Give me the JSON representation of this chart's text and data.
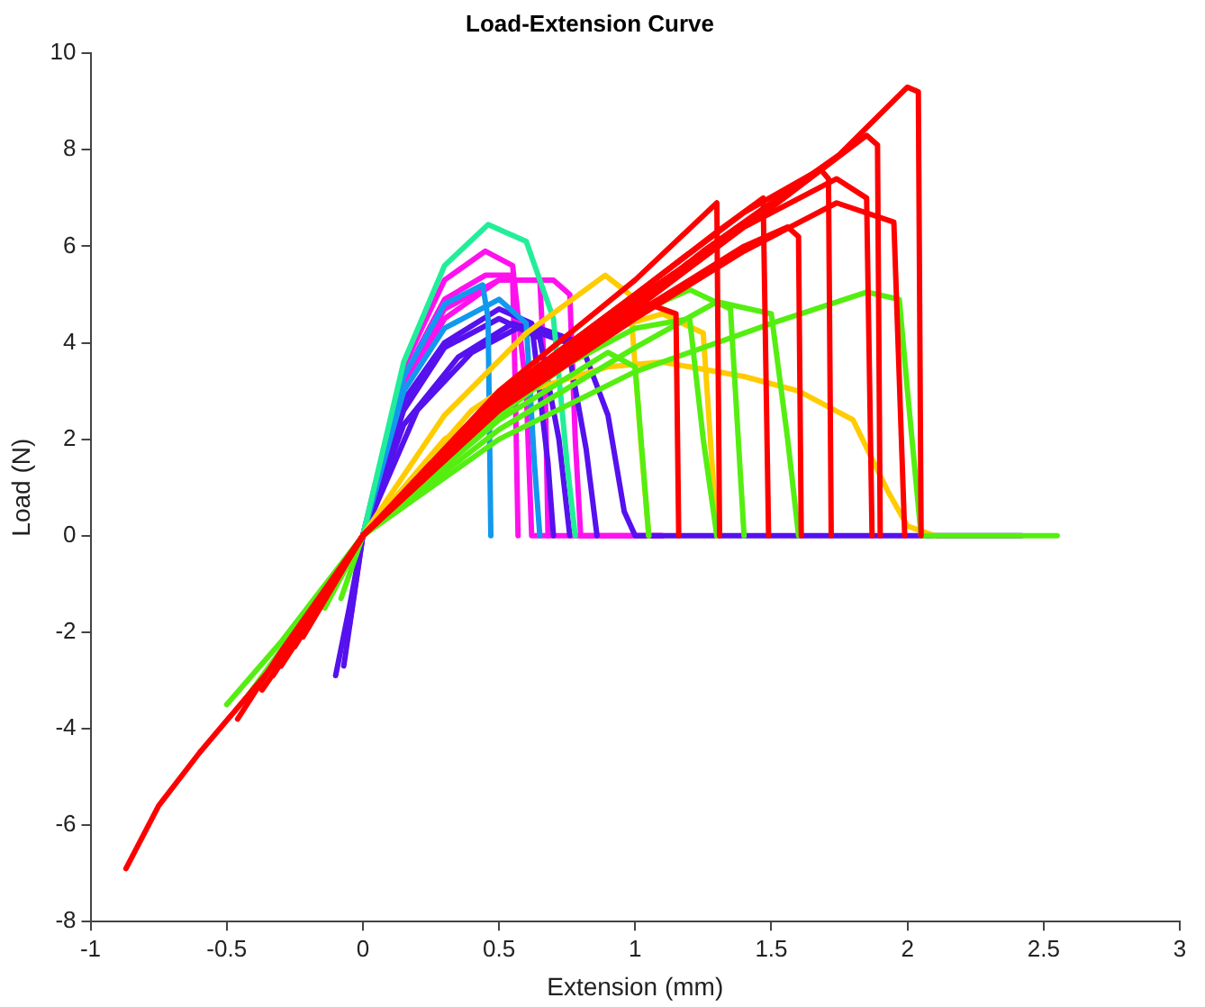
{
  "chart_data": {
    "type": "line",
    "title": "Load-Extension Curve",
    "xlabel": "Extension (mm)",
    "ylabel": "Load (N)",
    "xlim": [
      -1,
      3
    ],
    "xticks": [
      -1,
      -0.5,
      0,
      0.5,
      1,
      1.5,
      2,
      2.5,
      3
    ],
    "ylim": [
      -8,
      10
    ],
    "yticks": [
      -8,
      -6,
      -4,
      -2,
      0,
      2,
      4,
      6,
      8,
      10
    ],
    "grid": false,
    "legend": false,
    "series": [
      {
        "color": "#ff0000",
        "x": [
          -0.87,
          -0.75,
          -0.6,
          -0.45,
          -0.3,
          -0.15,
          0,
          0.25,
          0.5,
          0.75,
          1,
          1.25,
          1.5,
          1.75,
          2.0,
          2.04,
          2.05
        ],
        "values": [
          -6.9,
          -5.6,
          -4.5,
          -3.5,
          -2.5,
          -1.3,
          0,
          1.5,
          2.7,
          3.8,
          4.8,
          5.9,
          6.9,
          7.9,
          9.3,
          9.2,
          0
        ]
      },
      {
        "color": "#ff0000",
        "x": [
          -0.46,
          -0.3,
          -0.15,
          0,
          0.5,
          1,
          1.5,
          1.85,
          1.89,
          1.9
        ],
        "values": [
          -3.8,
          -2.4,
          -1.2,
          0,
          2.8,
          4.9,
          6.8,
          8.3,
          8.1,
          0
        ]
      },
      {
        "color": "#ff0000",
        "x": [
          -0.37,
          -0.2,
          0,
          0.5,
          1,
          1.4,
          1.68,
          1.71,
          1.72
        ],
        "values": [
          -3.2,
          -1.8,
          0,
          2.9,
          5.0,
          6.7,
          7.6,
          7.4,
          0
        ]
      },
      {
        "color": "#ff0000",
        "x": [
          -0.3,
          -0.15,
          0,
          0.5,
          1,
          1.4,
          1.74,
          1.85,
          1.87
        ],
        "values": [
          -2.7,
          -1.4,
          0,
          2.7,
          4.7,
          6.4,
          7.4,
          7.0,
          0
        ]
      },
      {
        "color": "#ff0000",
        "x": [
          -0.25,
          0,
          0.5,
          1,
          1.4,
          1.74,
          1.95,
          1.99
        ],
        "values": [
          -2.3,
          0,
          2.6,
          4.5,
          5.9,
          6.9,
          6.5,
          0
        ]
      },
      {
        "color": "#ff0000",
        "x": [
          -0.2,
          0,
          0.5,
          1,
          1.3,
          1.47,
          1.49
        ],
        "values": [
          -1.9,
          0,
          2.9,
          5.0,
          6.3,
          7.0,
          0
        ]
      },
      {
        "color": "#ff0000",
        "x": [
          -0.22,
          0,
          0.5,
          1,
          1.3,
          1.31
        ],
        "values": [
          -2.1,
          0,
          3.0,
          5.3,
          6.9,
          0
        ]
      },
      {
        "color": "#ff0000",
        "x": [
          -0.33,
          0,
          0.5,
          1,
          1.4,
          1.56,
          1.6,
          1.61
        ],
        "values": [
          -2.9,
          0,
          2.7,
          4.6,
          6.0,
          6.4,
          6.2,
          0
        ]
      },
      {
        "color": "#ff0000",
        "x": [
          -0.15,
          0,
          0.5,
          0.9,
          1.05,
          1.15,
          1.16
        ],
        "values": [
          -1.3,
          0,
          2.6,
          4.3,
          4.8,
          4.6,
          0
        ]
      },
      {
        "color": "#55ee11",
        "x": [
          -0.5,
          -0.3,
          -0.15,
          0,
          0.5,
          1,
          1.5,
          1.85,
          1.97,
          2.0,
          2.05,
          2.55
        ],
        "values": [
          -3.5,
          -2.2,
          -1.1,
          0,
          2.0,
          3.4,
          4.4,
          5.05,
          4.9,
          3,
          0,
          0
        ]
      },
      {
        "color": "#55ee11",
        "x": [
          -0.42,
          -0.2,
          0,
          0.5,
          1,
          1.3,
          1.5,
          1.56,
          1.6
        ],
        "values": [
          -3.3,
          -1.6,
          0,
          2.2,
          3.9,
          4.85,
          4.6,
          2,
          0
        ]
      },
      {
        "color": "#55ee11",
        "x": [
          -0.14,
          0,
          0.5,
          1,
          1.2,
          1.35,
          1.4
        ],
        "values": [
          -1.5,
          0,
          2.5,
          4.6,
          5.1,
          4.7,
          0
        ]
      },
      {
        "color": "#55ee11",
        "x": [
          -0.08,
          0,
          0.5,
          1,
          1.2,
          1.25,
          1.3
        ],
        "values": [
          -1.3,
          0,
          2.8,
          4.3,
          4.5,
          2,
          0
        ]
      },
      {
        "color": "#55ee11",
        "x": [
          -0.3,
          0,
          0.5,
          0.9,
          1.0,
          1.05
        ],
        "values": [
          -2.5,
          0,
          2.4,
          3.8,
          3.5,
          0
        ]
      },
      {
        "color": "#ffcc00",
        "x": [
          0,
          0.3,
          0.6,
          0.9,
          1.1,
          1.4,
          1.6,
          1.8,
          1.93,
          2.0,
          2.1
        ],
        "values": [
          0,
          2.0,
          3.0,
          3.5,
          3.6,
          3.3,
          3.0,
          2.4,
          0.9,
          0.2,
          0
        ]
      },
      {
        "color": "#ffcc00",
        "x": [
          0,
          0.3,
          0.6,
          0.89,
          0.98,
          1.02,
          1.05
        ],
        "values": [
          0,
          2.5,
          4.2,
          5.4,
          5.0,
          2,
          0
        ]
      },
      {
        "color": "#ffcc00",
        "x": [
          0,
          0.4,
          0.8,
          1.1,
          1.25,
          1.3
        ],
        "values": [
          0,
          2.6,
          4.1,
          4.6,
          4.2,
          0
        ]
      },
      {
        "color": "#22ee99",
        "x": [
          0,
          0.15,
          0.3,
          0.46,
          0.6,
          0.7,
          0.75,
          0.78
        ],
        "values": [
          0,
          3.6,
          5.6,
          6.45,
          6.1,
          4.5,
          1.5,
          0
        ]
      },
      {
        "color": "#1199ee",
        "x": [
          0,
          0.15,
          0.3,
          0.44,
          0.46,
          0.47
        ],
        "values": [
          0,
          3.3,
          4.8,
          5.2,
          4.5,
          0
        ]
      },
      {
        "color": "#1199ee",
        "x": [
          0,
          0.15,
          0.3,
          0.5,
          0.6,
          0.63,
          0.65
        ],
        "values": [
          0,
          3.0,
          4.3,
          4.9,
          4.4,
          1.5,
          0
        ]
      },
      {
        "color": "#5511ee",
        "x": [
          -0.1,
          -0.05,
          0,
          0.15,
          0.3,
          0.5,
          0.65,
          0.72,
          0.76
        ],
        "values": [
          -2.9,
          -1.5,
          0,
          2.6,
          3.9,
          4.5,
          4.1,
          2,
          0
        ]
      },
      {
        "color": "#5511ee",
        "x": [
          -0.07,
          0,
          0.15,
          0.35,
          0.55,
          0.75,
          0.82,
          0.86
        ],
        "values": [
          -2.7,
          0,
          2.3,
          3.7,
          4.4,
          4.0,
          1.8,
          0
        ]
      },
      {
        "color": "#5511ee",
        "x": [
          0,
          0.2,
          0.4,
          0.6,
          0.8,
          0.9,
          0.96,
          1.0,
          2.42
        ],
        "values": [
          0,
          2.6,
          3.8,
          4.4,
          4.0,
          2.5,
          0.5,
          0,
          0
        ]
      },
      {
        "color": "#5511ee",
        "x": [
          0,
          0.15,
          0.3,
          0.5,
          0.62,
          0.68,
          0.7
        ],
        "values": [
          0,
          2.8,
          4.0,
          4.7,
          4.4,
          1.5,
          0
        ]
      },
      {
        "color": "#ff11ee",
        "x": [
          -0.05,
          0,
          0.15,
          0.3,
          0.45,
          0.55,
          0.6,
          0.62,
          1.1
        ],
        "values": [
          -1.9,
          0,
          3.5,
          5.3,
          5.9,
          5.6,
          3,
          0,
          0
        ]
      },
      {
        "color": "#ff11ee",
        "x": [
          0,
          0.15,
          0.3,
          0.45,
          0.55,
          0.56,
          0.57
        ],
        "values": [
          0,
          3.3,
          4.9,
          5.4,
          5.4,
          3,
          0
        ]
      },
      {
        "color": "#ff11ee",
        "x": [
          0,
          0.15,
          0.3,
          0.5,
          0.65,
          0.67,
          0.68
        ],
        "values": [
          0,
          3.2,
          4.7,
          5.3,
          5.3,
          3,
          0
        ]
      },
      {
        "color": "#ff11ee",
        "x": [
          0,
          0.15,
          0.3,
          0.5,
          0.7,
          0.76,
          0.78,
          0.8,
          1.1
        ],
        "values": [
          0,
          3.0,
          4.5,
          5.3,
          5.3,
          5.0,
          2,
          0,
          0
        ]
      }
    ]
  }
}
